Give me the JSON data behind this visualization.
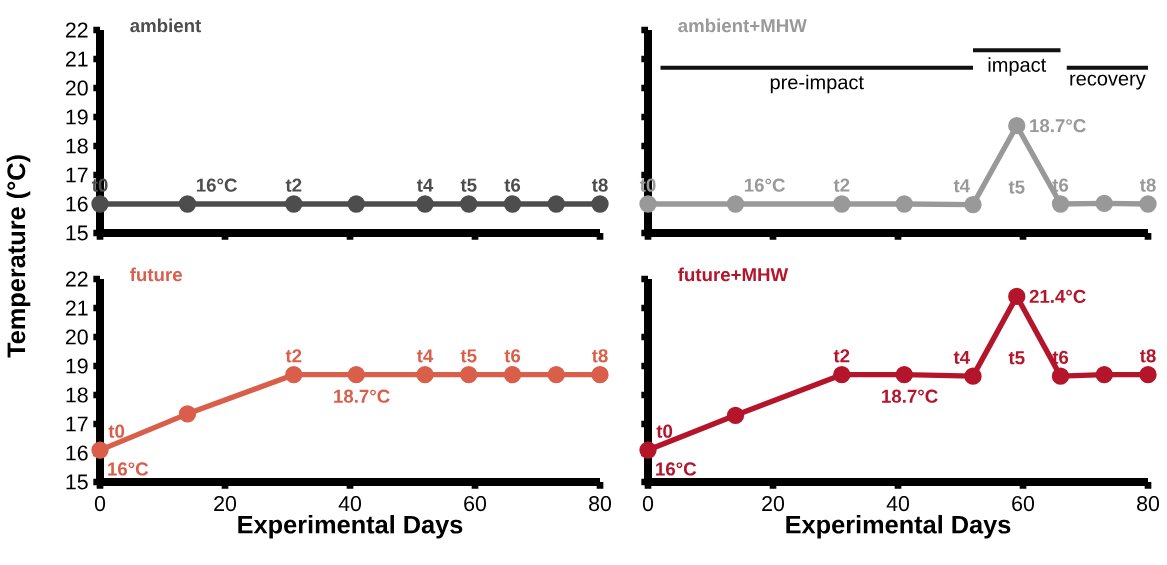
{
  "chart_data": [
    {
      "type": "line",
      "title": "ambient",
      "ylabel": "Temperature (°C)",
      "x": [
        0,
        14,
        31,
        41,
        52,
        59,
        66,
        73,
        80
      ],
      "series": [
        {
          "color": "#4d4d4d",
          "values": [
            16,
            16,
            16,
            16,
            16,
            16,
            16,
            16,
            16
          ]
        }
      ],
      "annotations": [
        {
          "text": "t0",
          "x": 0,
          "y": 16
        },
        {
          "text": "16°C",
          "x": 14,
          "y": 16
        },
        {
          "text": "t2",
          "x": 31,
          "y": 16
        },
        {
          "text": "t4",
          "x": 52,
          "y": 16
        },
        {
          "text": "t5",
          "x": 59,
          "y": 16
        },
        {
          "text": "t6",
          "x": 66,
          "y": 16
        },
        {
          "text": "t8",
          "x": 80,
          "y": 16
        }
      ],
      "xlim": [
        0,
        80
      ],
      "ylim": [
        15,
        22
      ],
      "xticks": [
        0,
        20,
        40,
        60,
        80
      ],
      "yticks": [
        15,
        16,
        17,
        18,
        19,
        20,
        21,
        22
      ],
      "tick_labels": "y",
      "marker": "circle",
      "line_style": "solid"
    },
    {
      "type": "line",
      "title": "ambient+MHW",
      "x": [
        0,
        14,
        31,
        41,
        52,
        59,
        66,
        73,
        80
      ],
      "series": [
        {
          "color": "#999999",
          "values": [
            16,
            16,
            16,
            16,
            15.98,
            18.7,
            16,
            16.02,
            16
          ]
        },
        {
          "color": "#111111",
          "x": [
            2,
            52
          ],
          "values": [
            20.7,
            20.7
          ],
          "marker": "none"
        },
        {
          "color": "#111111",
          "x": [
            52,
            66
          ],
          "values": [
            21.3,
            21.3
          ],
          "marker": "none"
        },
        {
          "color": "#111111",
          "x": [
            67,
            80
          ],
          "values": [
            20.7,
            20.7
          ],
          "marker": "none"
        }
      ],
      "annotations": [
        {
          "text": "t0",
          "x": 0,
          "y": 16
        },
        {
          "text": "16°C",
          "x": 14,
          "y": 16
        },
        {
          "text": "t2",
          "x": 31,
          "y": 16
        },
        {
          "text": "t4",
          "x": 52,
          "y": 15.98
        },
        {
          "text": "t5",
          "x": 59,
          "y": 18.7
        },
        {
          "text": "18.7°C",
          "x": 59,
          "y": 18.7
        },
        {
          "text": "t6",
          "x": 66,
          "y": 16
        },
        {
          "text": "t8",
          "x": 80,
          "y": 16
        },
        {
          "text": "pre-impact",
          "x": 27,
          "y": 20.7
        },
        {
          "text": "impact",
          "x": 59,
          "y": 21.3
        },
        {
          "text": "recovery",
          "x": 73.5,
          "y": 20.7
        }
      ],
      "xlim": [
        0,
        80
      ],
      "ylim": [
        15,
        22
      ],
      "xticks": [
        0,
        20,
        40,
        60,
        80
      ],
      "yticks": [
        15,
        16,
        17,
        18,
        19,
        20,
        21,
        22
      ],
      "tick_labels": false,
      "marker": "circle",
      "line_style": "solid"
    },
    {
      "type": "line",
      "title": "future",
      "xlabel": "Experimental Days",
      "x": [
        0,
        14,
        31,
        41,
        52,
        59,
        66,
        73,
        80
      ],
      "series": [
        {
          "color": "#d95f4b",
          "values": [
            16.1,
            17.35,
            18.7,
            18.7,
            18.7,
            18.7,
            18.7,
            18.7,
            18.7
          ]
        }
      ],
      "annotations": [
        {
          "text": "t0",
          "x": 0,
          "y": 16.1
        },
        {
          "text": "16°C",
          "x": 0,
          "y": 16.1
        },
        {
          "text": "t2",
          "x": 31,
          "y": 18.7
        },
        {
          "text": "18.7°C",
          "x": 41,
          "y": 18.7
        },
        {
          "text": "t4",
          "x": 52,
          "y": 18.7
        },
        {
          "text": "t5",
          "x": 59,
          "y": 18.7
        },
        {
          "text": "t6",
          "x": 66,
          "y": 18.7
        },
        {
          "text": "t8",
          "x": 80,
          "y": 18.7
        }
      ],
      "xlim": [
        0,
        80
      ],
      "ylim": [
        15,
        22
      ],
      "xticks": [
        0,
        20,
        40,
        60,
        80
      ],
      "yticks": [
        15,
        16,
        17,
        18,
        19,
        20,
        21,
        22
      ],
      "marker": "circle",
      "line_style": "solid"
    },
    {
      "type": "line",
      "title": "future+MHW",
      "xlabel": "Experimental Days",
      "x": [
        0,
        14,
        31,
        41,
        52,
        59,
        66,
        73,
        80
      ],
      "series": [
        {
          "color": "#b5152b",
          "values": [
            16.1,
            17.3,
            18.7,
            18.7,
            18.65,
            21.4,
            18.65,
            18.7,
            18.7
          ]
        }
      ],
      "annotations": [
        {
          "text": "t0",
          "x": 0,
          "y": 16.1
        },
        {
          "text": "16°C",
          "x": 0,
          "y": 16.1
        },
        {
          "text": "t2",
          "x": 31,
          "y": 18.7
        },
        {
          "text": "18.7°C",
          "x": 41,
          "y": 18.7
        },
        {
          "text": "t4",
          "x": 52,
          "y": 18.65
        },
        {
          "text": "t5",
          "x": 59,
          "y": 21.4
        },
        {
          "text": "21.4°C",
          "x": 59,
          "y": 21.4
        },
        {
          "text": "t6",
          "x": 66,
          "y": 18.65
        },
        {
          "text": "t8",
          "x": 80,
          "y": 18.7
        }
      ],
      "xlim": [
        0,
        80
      ],
      "ylim": [
        15,
        22
      ],
      "xticks": [
        0,
        20,
        40,
        60,
        80
      ],
      "yticks": [
        15,
        16,
        17,
        18,
        19,
        20,
        21,
        22
      ],
      "tick_labels": "x",
      "marker": "circle",
      "line_style": "solid"
    }
  ]
}
